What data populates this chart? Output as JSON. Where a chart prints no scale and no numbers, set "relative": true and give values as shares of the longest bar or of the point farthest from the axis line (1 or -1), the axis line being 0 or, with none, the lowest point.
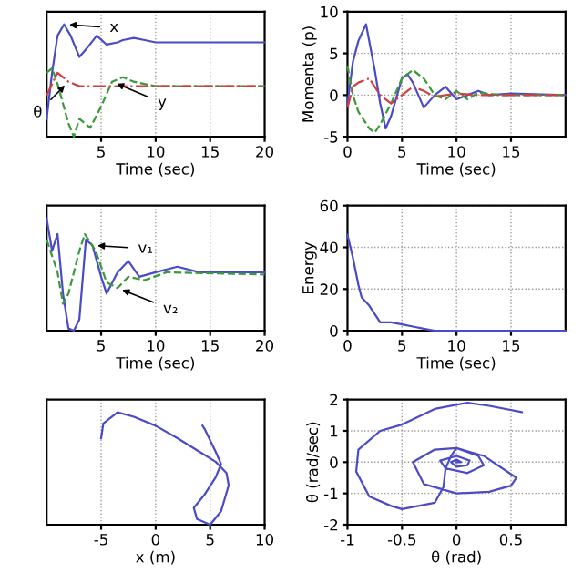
{
  "chart_data": [
    {
      "type": "line",
      "relative": true,
      "xlabel": "Time (sec)",
      "xlim": [
        0,
        20
      ],
      "xticks": [
        5,
        10,
        15,
        20
      ],
      "tick_labels": "x",
      "grid": true,
      "series": [
        {
          "color": "#4b4bc8",
          "line_style": "solid",
          "x": [
            0,
            0.5,
            1,
            1.6,
            2.2,
            3,
            3.8,
            4.6,
            5.5,
            6.5,
            7,
            8,
            9,
            10,
            20
          ],
          "values": [
            0.16,
            0.57,
            0.9,
            1.0,
            0.9,
            0.71,
            0.8,
            0.9,
            0.82,
            0.84,
            0.86,
            0.88,
            0.86,
            0.84,
            0.84
          ]
        },
        {
          "color": "#3a9a3a",
          "line_style": "dashed",
          "x": [
            0,
            0.5,
            1,
            2,
            2.5,
            3,
            4,
            5,
            6,
            7,
            8,
            10,
            20
          ],
          "values": [
            0.57,
            0.61,
            0.47,
            0.12,
            0,
            0.16,
            0.08,
            0.27,
            0.49,
            0.53,
            0.49,
            0.45,
            0.45
          ]
        },
        {
          "color": "#d04040",
          "line_style": "dashdot",
          "x": [
            0,
            1,
            2,
            3,
            20
          ],
          "values": [
            0.37,
            0.57,
            0.49,
            0.45,
            0.45
          ]
        }
      ],
      "annotations": [
        {
          "text": "x",
          "x": 1.6,
          "y": 1.0
        },
        {
          "text": "y",
          "x": 6,
          "y": 0.49
        },
        {
          "text": "θ",
          "x": 2,
          "y": 0.49
        }
      ]
    },
    {
      "type": "line",
      "ylabel": "Momenta (p)",
      "xlabel": "Time (sec)",
      "xlim": [
        0,
        20
      ],
      "xticks": [
        0,
        5,
        10,
        15
      ],
      "ylim": [
        -5,
        10
      ],
      "yticks": [
        -5,
        0,
        5,
        10
      ],
      "grid": true,
      "series": [
        {
          "color": "#4b4bc8",
          "line_style": "solid",
          "x": [
            0,
            0.5,
            1,
            1.7,
            2.5,
            3,
            3.5,
            4,
            5,
            5.5,
            6,
            7,
            8,
            9,
            10,
            11,
            12,
            13,
            15,
            20
          ],
          "values": [
            -1,
            4,
            6.5,
            8.5,
            3,
            -1,
            -4,
            -2.5,
            2,
            2.5,
            1.5,
            -1.5,
            0,
            1,
            -0.5,
            0,
            0.5,
            0,
            0.2,
            0
          ]
        },
        {
          "color": "#3a9a3a",
          "line_style": "dashed",
          "x": [
            0,
            0.5,
            1,
            2,
            2.5,
            3,
            4,
            5,
            6,
            7,
            8,
            9,
            10,
            11,
            12,
            14,
            20
          ],
          "values": [
            3.5,
            0,
            -2,
            -4,
            -4.5,
            -3.5,
            -1,
            2,
            3,
            2,
            0,
            -0.5,
            0.5,
            -0.5,
            0.3,
            0,
            0
          ]
        },
        {
          "color": "#d04040",
          "line_style": "dashdot",
          "x": [
            0,
            0.5,
            1,
            2,
            3,
            4,
            5,
            6,
            7,
            8,
            10,
            12,
            20
          ],
          "values": [
            -1.5,
            1,
            1.5,
            2,
            0,
            -1,
            0,
            1,
            0.5,
            -0.2,
            0.2,
            0,
            0
          ]
        }
      ]
    },
    {
      "type": "line",
      "relative": true,
      "xlabel": "Time (sec)",
      "xlim": [
        0,
        20
      ],
      "xticks": [
        5,
        10,
        15,
        20
      ],
      "tick_labels": "x",
      "grid": true,
      "series": [
        {
          "color": "#4b4bc8",
          "line_style": "solid",
          "x": [
            0,
            0.5,
            1,
            1.5,
            2,
            2.5,
            3,
            3.6,
            4.2,
            5,
            5.5,
            6.5,
            7.5,
            8.5,
            10,
            12,
            14,
            20
          ],
          "values": [
            1.0,
            0.71,
            0.86,
            0.33,
            0.02,
            0,
            0.1,
            0.81,
            0.76,
            0.48,
            0.33,
            0.52,
            0.62,
            0.48,
            0.52,
            0.57,
            0.52,
            0.52
          ]
        },
        {
          "color": "#3a9a3a",
          "line_style": "dashed",
          "x": [
            0,
            1,
            1.5,
            2,
            3,
            3.5,
            4.5,
            5.5,
            6.5,
            7.5,
            9,
            11,
            20
          ],
          "values": [
            0.81,
            0.52,
            0.24,
            0.33,
            0.71,
            0.86,
            0.71,
            0.43,
            0.38,
            0.48,
            0.45,
            0.52,
            0.5
          ]
        }
      ],
      "annotations": [
        {
          "text": "v₁",
          "x": 4.2,
          "y": 0.76
        },
        {
          "text": "v₂",
          "x": 6.5,
          "y": 0.38
        }
      ]
    },
    {
      "type": "line",
      "ylabel": "Energy",
      "xlabel": "Time (sec)",
      "xlim": [
        0,
        20
      ],
      "xticks": [
        0,
        5,
        10,
        15
      ],
      "ylim": [
        0,
        60
      ],
      "yticks": [
        0,
        20,
        40,
        60
      ],
      "grid": true,
      "series": [
        {
          "color": "#4b4bc8",
          "line_style": "solid",
          "x": [
            0,
            0.5,
            1,
            1.3,
            2,
            3,
            4,
            5,
            6,
            7,
            8,
            10,
            20
          ],
          "values": [
            46,
            35,
            22,
            16,
            12,
            4,
            4,
            3,
            2,
            1,
            0,
            0,
            0
          ]
        }
      ]
    },
    {
      "type": "line",
      "relative": true,
      "xlabel": "x (m)",
      "xlim": [
        -10,
        10
      ],
      "xticks": [
        -5,
        0,
        5,
        10
      ],
      "tick_labels": "x",
      "grid": true,
      "series": [
        {
          "color": "#4b4bc8",
          "line_style": "solid",
          "x": [
            -5,
            -4.8,
            -3.5,
            -2,
            0,
            2,
            4,
            5.5,
            6.5,
            6.7,
            6,
            5,
            3.8,
            3.5,
            4.5,
            5.5,
            6,
            5.5,
            4.5,
            4.3
          ],
          "values": [
            0.77,
            0.9,
            1.0,
            0.96,
            0.88,
            0.77,
            0.65,
            0.56,
            0.46,
            0.35,
            0.12,
            0,
            0.05,
            0.15,
            0.27,
            0.42,
            0.54,
            0.65,
            0.85,
            0.88
          ]
        }
      ]
    },
    {
      "type": "line",
      "ylabel": "θ̇ (rad/sec)",
      "xlabel": "θ (rad)",
      "xlim": [
        -1,
        1
      ],
      "xticks": [
        -1,
        -0.5,
        0,
        0.5
      ],
      "ylim": [
        -2,
        2
      ],
      "yticks": [
        -2,
        -1,
        0,
        1,
        2
      ],
      "grid": true,
      "series": [
        {
          "color": "#4b4bc8",
          "line_style": "solid",
          "x": [
            0.6,
            0.3,
            0.1,
            -0.2,
            -0.5,
            -0.7,
            -0.9,
            -0.92,
            -0.8,
            -0.6,
            -0.5,
            -0.2,
            -0.12,
            -0.1,
            -0.05,
            0,
            0.25,
            0.55,
            0.5,
            0.3,
            0,
            -0.3,
            -0.4,
            -0.2,
            0,
            0.2,
            0.25,
            0.1,
            -0.1,
            -0.15,
            0,
            0.12,
            0.1,
            0,
            -0.05,
            0,
            0.04,
            0
          ],
          "values": [
            1.6,
            1.8,
            1.9,
            1.7,
            1.2,
            1.0,
            0.4,
            -0.3,
            -1.1,
            -1.4,
            -1.5,
            -1.3,
            -0.8,
            -0.2,
            0.2,
            0.45,
            0.2,
            -0.5,
            -0.75,
            -0.95,
            -1.0,
            -0.7,
            0,
            0.4,
            0.45,
            0.2,
            -0.1,
            -0.35,
            -0.2,
            0.05,
            0.2,
            0.05,
            -0.1,
            -0.15,
            0,
            0.08,
            0,
            0
          ]
        }
      ]
    }
  ]
}
